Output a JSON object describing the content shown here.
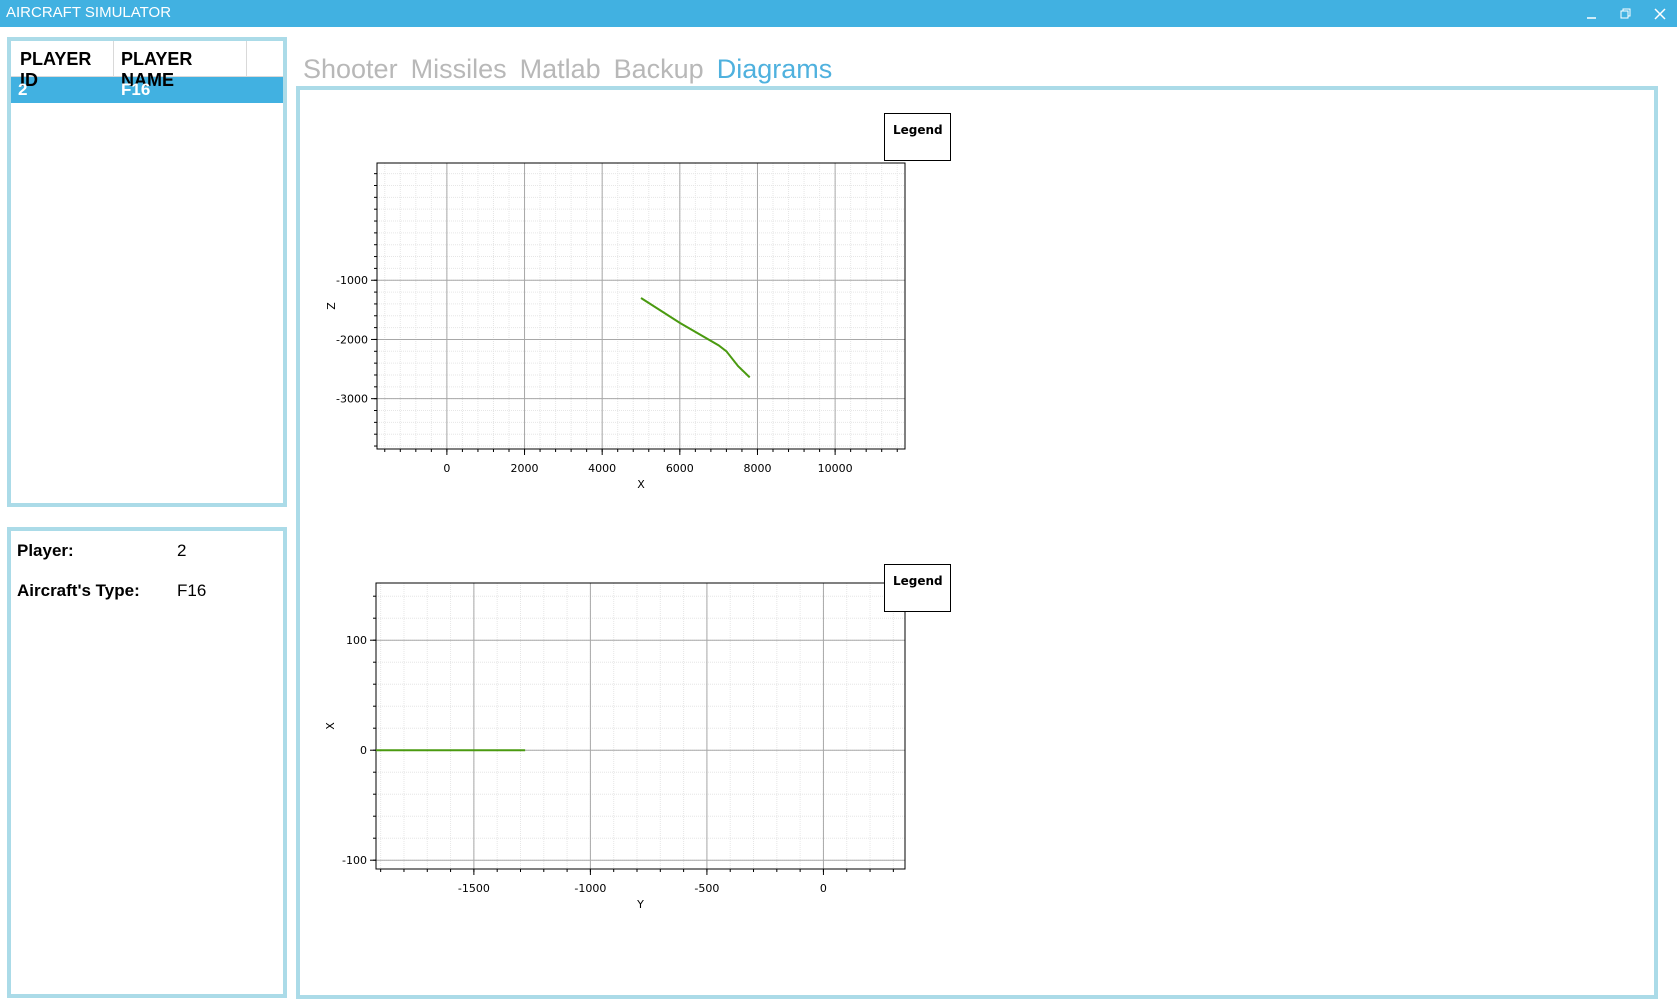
{
  "window": {
    "title": "AIRCRAFT SIMULATOR",
    "controls": [
      "minimize-icon",
      "restore-icon",
      "close-icon"
    ]
  },
  "player_list": {
    "headers": [
      "PLAYER ID",
      "PLAYER NAME"
    ],
    "rows": [
      {
        "id": "2",
        "name": "F16"
      }
    ],
    "selected_color": "#41b1e1"
  },
  "player_info": {
    "player_label": "Player:",
    "player_value": "2",
    "type_label": "Aircraft's Type:",
    "type_value": "F16"
  },
  "tabs": [
    {
      "label": "Shooter",
      "active": false
    },
    {
      "label": "Missiles",
      "active": false
    },
    {
      "label": "Matlab",
      "active": false
    },
    {
      "label": "Backup",
      "active": false
    },
    {
      "label": "Diagrams",
      "active": true
    }
  ],
  "colors": {
    "accent": "#41b1e1",
    "panel_border": "#abdbe8",
    "inactive_tab": "#b8b8b8",
    "series_line": "#4a9a10"
  },
  "chart_data": [
    {
      "type": "line",
      "legend_label": "Legend",
      "xlabel": "X",
      "ylabel": "Z",
      "xlim": [
        -1800,
        11800
      ],
      "ylim": [
        -3850,
        980
      ],
      "xticks": [
        0,
        2000,
        4000,
        6000,
        8000,
        10000
      ],
      "yticks": [
        -1000,
        -2000,
        -3000
      ],
      "grid": true,
      "series": [
        {
          "x": [
            5000,
            6000,
            7000,
            7200,
            7500,
            7800
          ],
          "y": [
            -1300,
            -1720,
            -2100,
            -2200,
            -2450,
            -2640
          ]
        }
      ]
    },
    {
      "type": "line",
      "legend_label": "Legend",
      "xlabel": "Y",
      "ylabel": "X",
      "xlim": [
        -1920,
        350
      ],
      "ylim": [
        -108,
        152
      ],
      "xticks": [
        -1500,
        -1000,
        -500,
        0
      ],
      "yticks": [
        100,
        0,
        -100
      ],
      "grid": true,
      "series": [
        {
          "x": [
            -1930,
            -1280
          ],
          "y": [
            0,
            0
          ]
        }
      ]
    }
  ]
}
